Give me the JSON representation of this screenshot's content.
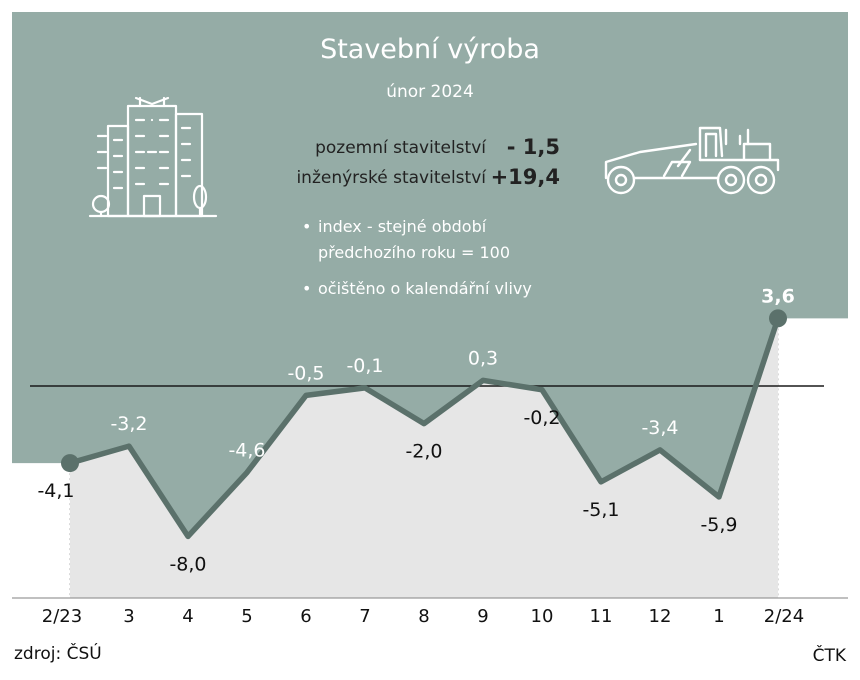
{
  "title": "Stavební výroba",
  "subtitle": "únor 2024",
  "stats": [
    {
      "label": "pozemní stavitelství",
      "value": "- 1,5"
    },
    {
      "label": "inženýrské stavitelství",
      "value": "+19,4"
    }
  ],
  "notes": [
    {
      "bullet": "•",
      "text": "index - stejné období předchozího roku = 100"
    },
    {
      "bullet": "•",
      "text": "očištěno o kalendářní vlivy"
    }
  ],
  "source": "zdroj: ČSÚ",
  "credit": "ČTK",
  "colors": {
    "panel": "#95aca6",
    "line": "#5b716b",
    "area": "#e6e6e6",
    "baseline": "#1a1a1a"
  },
  "icons": {
    "left": "apartment-building-icon",
    "right": "road-grader-icon"
  },
  "chart_data": {
    "type": "line",
    "categories": [
      "2/23",
      "3",
      "4",
      "5",
      "6",
      "7",
      "8",
      "9",
      "10",
      "11",
      "12",
      "1",
      "2/24"
    ],
    "values": [
      -4.1,
      -3.2,
      -8.0,
      -4.6,
      -0.5,
      -0.1,
      -2.0,
      0.3,
      -0.2,
      -5.1,
      -3.4,
      -5.9,
      3.6
    ],
    "data_labels": [
      "-4,1",
      "-3,2",
      "-8,0",
      "-4,6",
      "-0,5",
      "-0,1",
      "-2,0",
      "0,3",
      "-0,2",
      "-5,1",
      "-3,4",
      "-5,9",
      "3,6"
    ],
    "reference_line": 0,
    "ylim": [
      -8.0,
      3.6
    ]
  }
}
